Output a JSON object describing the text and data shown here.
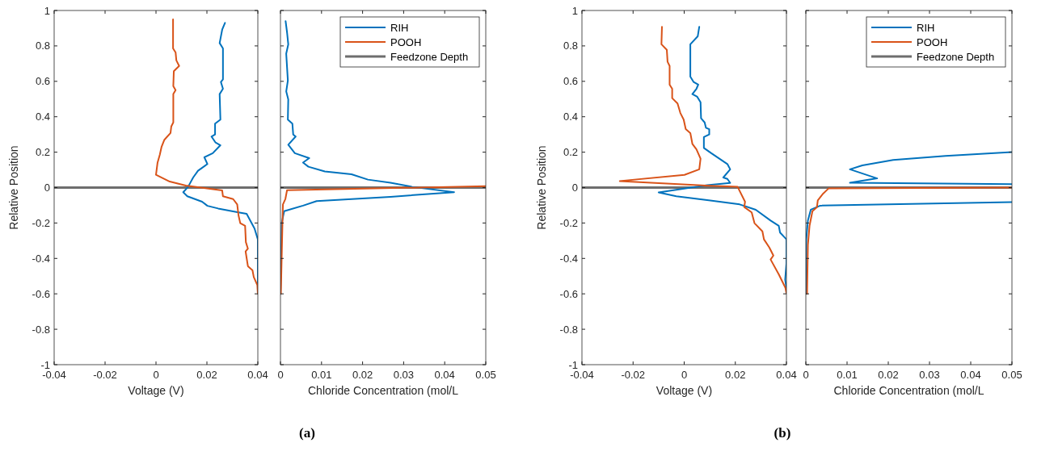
{
  "chart_data": [
    {
      "type": "line",
      "xlabel": "Voltage (V)",
      "ylabel": "Relative Position",
      "xlim": [
        -0.04,
        0.04
      ],
      "xticks": [
        -0.04,
        -0.02,
        0,
        0.02,
        0.04
      ],
      "ylim": [
        -1,
        1
      ],
      "yticks": [
        -1,
        -0.8,
        -0.6,
        -0.4,
        -0.2,
        0,
        0.2,
        0.4,
        0.6,
        0.8,
        1
      ],
      "legend": false,
      "annotations": [
        "(a)"
      ],
      "ref_lines": [
        {
          "axis": "y",
          "value": 0,
          "color": "#6e6e6e"
        }
      ],
      "series": [
        {
          "color": "#0072bd",
          "x": [
            0.0271,
            0.026,
            0.025,
            0.0263,
            0.0263,
            0.0255,
            0.0263,
            0.025,
            0.0253,
            0.0232,
            0.0232,
            0.0218,
            0.0234,
            0.0253,
            0.0223,
            0.019,
            0.0202,
            0.0165,
            0.0146,
            0.0126,
            0.0107,
            0.0123,
            0.0181,
            0.0202,
            0.0244,
            0.0324,
            0.0356,
            0.0387,
            0.04,
            0.04
          ],
          "values": [
            0.93,
            0.892,
            0.816,
            0.786,
            0.611,
            0.596,
            0.558,
            0.528,
            0.384,
            0.361,
            0.3,
            0.288,
            0.254,
            0.239,
            0.194,
            0.171,
            0.133,
            0.095,
            0.057,
            0.004,
            -0.026,
            -0.049,
            -0.08,
            -0.103,
            -0.118,
            -0.14,
            -0.148,
            -0.231,
            -0.292,
            -0.55
          ]
        },
        {
          "color": "#d95319",
          "x": [
            0.0067,
            0.0067,
            0.0077,
            0.008,
            0.0091,
            0.007,
            0.0068,
            0.0077,
            0.0068,
            0.0068,
            0.006,
            0.0057,
            0.0033,
            0.0022,
            0.0015,
            0.0006,
            0.0,
            0.0054,
            0.0117,
            0.026,
            0.0263,
            0.0303,
            0.0319,
            0.0324,
            0.0331,
            0.035,
            0.0353,
            0.0361,
            0.0352,
            0.0361,
            0.0379,
            0.0384,
            0.0398,
            0.04
          ],
          "values": [
            0.95,
            0.786,
            0.763,
            0.718,
            0.687,
            0.657,
            0.573,
            0.55,
            0.528,
            0.368,
            0.345,
            0.308,
            0.27,
            0.231,
            0.186,
            0.14,
            0.072,
            0.034,
            0.011,
            -0.016,
            -0.049,
            -0.065,
            -0.095,
            -0.156,
            -0.201,
            -0.216,
            -0.308,
            -0.345,
            -0.361,
            -0.444,
            -0.467,
            -0.505,
            -0.55,
            -0.6
          ]
        }
      ]
    },
    {
      "type": "line",
      "xlabel": "Chloride Concentration (mol/L",
      "xlim": [
        0,
        0.05
      ],
      "xticks": [
        0,
        0.01,
        0.02,
        0.03,
        0.04,
        0.05
      ],
      "ylim": [
        -1,
        1
      ],
      "yticks": [
        -1,
        -0.8,
        -0.6,
        -0.4,
        -0.2,
        0,
        0.2,
        0.4,
        0.6,
        0.8,
        1
      ],
      "tick_labels": "x",
      "legend": "top right",
      "ref_lines": [
        {
          "axis": "y",
          "value": 0,
          "label": "Feedzone Depth",
          "color": "#6e6e6e"
        }
      ],
      "series": [
        {
          "name": "RIH",
          "color": "#0072bd",
          "x": [
            0.00125,
            0.0016,
            0.0019,
            0.0014,
            0.0018,
            0.0014,
            0.0019,
            0.0018,
            0.0029,
            0.0031,
            0.0037,
            0.0019,
            0.0035,
            0.007,
            0.0055,
            0.0068,
            0.0108,
            0.0173,
            0.0213,
            0.0268,
            0.0321,
            0.0423,
            0.0268,
            0.0088,
            0.0055,
            0.0009,
            0.0003,
            0.0
          ],
          "values": [
            0.94,
            0.877,
            0.809,
            0.756,
            0.604,
            0.543,
            0.498,
            0.384,
            0.361,
            0.3,
            0.288,
            0.242,
            0.194,
            0.166,
            0.141,
            0.118,
            0.091,
            0.075,
            0.045,
            0.027,
            0.004,
            -0.026,
            -0.052,
            -0.076,
            -0.102,
            -0.133,
            -0.201,
            -0.6
          ]
        },
        {
          "name": "POOH",
          "color": "#d95319",
          "x": [
            0.05,
            0.0016,
            0.0012,
            0.0006,
            0.0005,
            0.0001
          ],
          "values": [
            0.008,
            -0.015,
            -0.064,
            -0.095,
            -0.186,
            -0.6
          ]
        }
      ]
    },
    {
      "type": "line",
      "xlabel": "Voltage (V)",
      "ylabel": "Relative Position",
      "xlim": [
        -0.04,
        0.04
      ],
      "xticks": [
        -0.04,
        -0.02,
        0,
        0.02,
        0.04
      ],
      "ylim": [
        -1,
        1
      ],
      "yticks": [
        -1,
        -0.8,
        -0.6,
        -0.4,
        -0.2,
        0,
        0.2,
        0.4,
        0.6,
        0.8,
        1
      ],
      "legend": false,
      "annotations": [
        "(b)"
      ],
      "ref_lines": [
        {
          "axis": "y",
          "value": 0,
          "color": "#6e6e6e"
        }
      ],
      "series": [
        {
          "color": "#0072bd",
          "x": [
            0.0059,
            0.0053,
            0.0024,
            0.0024,
            0.0037,
            0.0055,
            0.0048,
            0.0032,
            0.0051,
            0.0064,
            0.0066,
            0.008,
            0.0085,
            0.0098,
            0.0098,
            0.0077,
            0.0077,
            0.0106,
            0.0169,
            0.018,
            0.0153,
            0.0169,
            0.018,
            0.009,
            -0.01,
            -0.0031,
            0.0096,
            0.0217,
            0.028,
            0.0338,
            0.037,
            0.0375,
            0.04,
            0.04,
            0.0395,
            0.04
          ],
          "values": [
            0.908,
            0.854,
            0.809,
            0.626,
            0.596,
            0.581,
            0.558,
            0.528,
            0.513,
            0.482,
            0.391,
            0.368,
            0.338,
            0.33,
            0.3,
            0.285,
            0.224,
            0.194,
            0.133,
            0.103,
            0.057,
            0.049,
            0.026,
            0.014,
            -0.027,
            -0.049,
            -0.072,
            -0.095,
            -0.125,
            -0.186,
            -0.216,
            -0.254,
            -0.292,
            -0.43,
            -0.52,
            -0.566
          ]
        },
        {
          "color": "#d95319",
          "x": [
            -0.0087,
            -0.0089,
            -0.0068,
            -0.0065,
            -0.0057,
            -0.0057,
            -0.0047,
            -0.0047,
            -0.0026,
            -0.0015,
            -0.0002,
            0.0006,
            0.0024,
            0.0032,
            0.0048,
            0.0064,
            0.0059,
            0.0001,
            -0.0252,
            0.0085,
            0.0209,
            0.0238,
            0.0235,
            0.0264,
            0.0275,
            0.0306,
            0.0312,
            0.0333,
            0.0349,
            0.0338,
            0.037,
            0.0396,
            0.04
          ],
          "values": [
            0.908,
            0.809,
            0.778,
            0.71,
            0.687,
            0.581,
            0.558,
            0.505,
            0.475,
            0.421,
            0.384,
            0.33,
            0.308,
            0.247,
            0.216,
            0.163,
            0.103,
            0.072,
            0.037,
            0.011,
            0.004,
            -0.08,
            -0.11,
            -0.14,
            -0.201,
            -0.247,
            -0.292,
            -0.338,
            -0.384,
            -0.406,
            -0.49,
            -0.566,
            -0.596
          ]
        }
      ]
    },
    {
      "type": "line",
      "xlabel": "Chloride Concentration (mol/L",
      "xlim": [
        0,
        0.05
      ],
      "xticks": [
        0,
        0.01,
        0.02,
        0.03,
        0.04,
        0.05
      ],
      "ylim": [
        -1,
        1
      ],
      "yticks": [
        -1,
        -0.8,
        -0.6,
        -0.4,
        -0.2,
        0,
        0.2,
        0.4,
        0.6,
        0.8,
        1
      ],
      "tick_labels": "x",
      "legend": "top right",
      "ref_lines": [
        {
          "axis": "y",
          "value": 0,
          "label": "Feedzone Depth",
          "color": "#6e6e6e"
        }
      ],
      "series": [
        {
          "name": "RIH",
          "color": "#0072bd",
          "x": [
            0.05,
            0.0339,
            0.0212,
            0.0137,
            0.0107,
            0.0173,
            0.0107,
            0.05,
            null,
            0.05,
            0.0035,
            0.0012,
            0.0005,
            0.0001,
            0.0001
          ],
          "values": [
            0.201,
            0.179,
            0.156,
            0.125,
            0.103,
            0.052,
            0.027,
            0.019,
            null,
            -0.082,
            -0.102,
            -0.125,
            -0.186,
            -0.292,
            -0.6
          ]
        },
        {
          "name": "POOH",
          "color": "#d95319",
          "x": [
            0.05,
            0.0055,
            0.0042,
            0.0029,
            0.0027,
            0.0016,
            0.0009,
            0.0005,
            0.0003
          ],
          "values": [
            0.0,
            -0.005,
            -0.034,
            -0.072,
            -0.11,
            -0.133,
            -0.216,
            -0.323,
            -0.6
          ]
        }
      ]
    }
  ]
}
